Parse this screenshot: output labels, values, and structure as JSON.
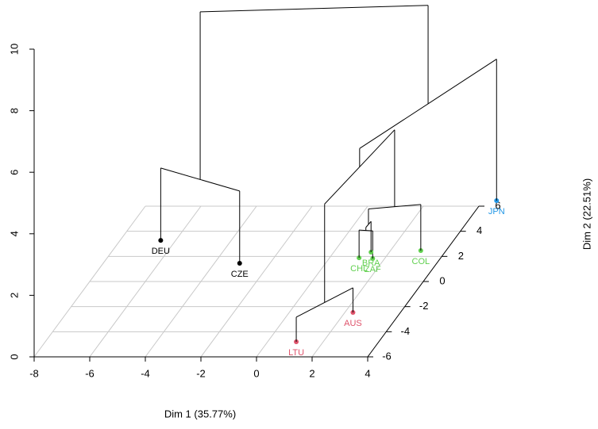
{
  "chart_data": {
    "type": "dendrogram3d",
    "xlabel": "Dim 1 (35.77%)",
    "ylabel": "Dim 2 (22.51%)",
    "xlim": [
      -8,
      4
    ],
    "xticks": [
      -8,
      -6,
      -4,
      -2,
      0,
      2,
      4
    ],
    "ylim": [
      -6,
      6
    ],
    "yticks": [
      -6,
      -4,
      -2,
      0,
      2,
      4,
      6
    ],
    "zlim": [
      0,
      10
    ],
    "zticks": [
      0,
      2,
      4,
      6,
      8,
      10
    ],
    "grid": true,
    "tree": {
      "height": 7.8,
      "children": [
        {
          "height": 2.35,
          "children": [
            {
              "label": "DEU",
              "x": -6.54,
              "y": 3.28,
              "color": "#000000"
            },
            {
              "label": "CZE",
              "x": -3.09,
              "y": 1.45,
              "color": "#000000"
            }
          ]
        },
        {
          "height": 4.6,
          "children": [
            {
              "height": 4.0,
              "children": [
                {
                  "height": 0.8,
                  "children": [
                    {
                      "label": "LTU",
                      "x": 1.03,
                      "y": -4.8,
                      "color": "#DF536B"
                    },
                    {
                      "label": "AUS",
                      "x": 2.29,
                      "y": -2.46,
                      "color": "#DF536B"
                    }
                  ]
                },
                {
                  "height": 1.5,
                  "children": [
                    {
                      "height": 1.0,
                      "children": [
                        {
                          "height": 0.9,
                          "children": [
                            {
                              "label": "CHL",
                              "x": 1.06,
                              "y": 1.89,
                              "color": "#61D04F"
                            },
                            {
                              "label": "ZAF",
                              "x": 1.57,
                              "y": 1.83,
                              "color": "#61D04F"
                            }
                          ]
                        },
                        {
                          "label": "BRA",
                          "x": 1.34,
                          "y": 2.34,
                          "color": "#61D04F"
                        }
                      ]
                    },
                    {
                      "label": "COL",
                      "x": 3.09,
                      "y": 2.46,
                      "color": "#61D04F"
                    }
                  ]
                }
              ]
            },
            {
              "label": "JPN",
              "x": 4.49,
              "y": 6.44,
              "color": "#2297E6"
            }
          ]
        }
      ]
    }
  }
}
